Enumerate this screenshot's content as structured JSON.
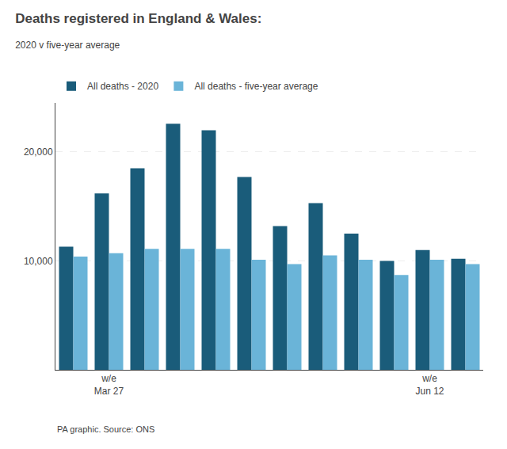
{
  "chart_data": {
    "type": "bar",
    "title": "Deaths registered in England & Wales:",
    "subtitle": "2020 v five-year average",
    "categories": [
      null,
      "w/e\nMar 27",
      null,
      null,
      null,
      null,
      null,
      null,
      null,
      null,
      "w/e\nJun 12",
      null
    ],
    "series": [
      {
        "name": "All deaths - 2020",
        "color": "#1a5c7a",
        "values": [
          11300,
          16200,
          18500,
          22600,
          22000,
          17700,
          13200,
          15300,
          12500,
          10000,
          11000,
          10200
        ]
      },
      {
        "name": "All deaths - five-year average",
        "color": "#6ab4d8",
        "values": [
          10400,
          10700,
          11100,
          11100,
          11100,
          10100,
          9700,
          10500,
          10100,
          8700,
          10100,
          9700
        ]
      }
    ],
    "ylim": [
      0,
      24500
    ],
    "yticks": [
      {
        "value": 10000,
        "label": "10,000"
      },
      {
        "value": 20000,
        "label": "20,000"
      }
    ],
    "grid": true,
    "legend": "top",
    "annotations": [
      "PA graphic. Source: ONS"
    ]
  }
}
